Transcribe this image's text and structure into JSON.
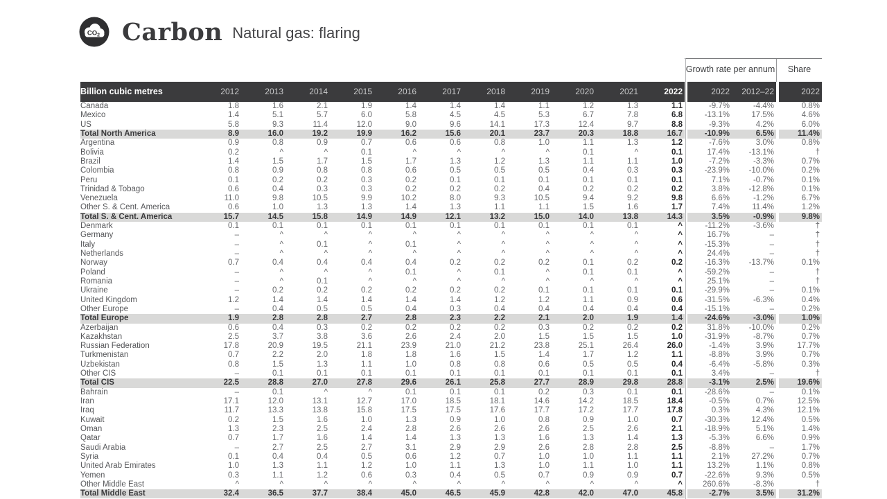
{
  "brand": {
    "icon_label": "CO2",
    "title": "Carbon",
    "subtitle": "Natural gas: flaring"
  },
  "colors": {
    "header_bg": "#3b3b3d",
    "total_row_bg": "#d9d9d8",
    "bold_text": "#28282a",
    "body_text": "#66676a"
  },
  "table": {
    "unit_label": "Billion cubic metres",
    "years": [
      "2012",
      "2013",
      "2014",
      "2015",
      "2016",
      "2017",
      "2018",
      "2019",
      "2020",
      "2021",
      "2022"
    ],
    "growth_section": {
      "title": "Growth rate per annum",
      "columns": [
        "2022",
        "2012–22"
      ]
    },
    "share_section": {
      "title": "Share",
      "column": "2022"
    },
    "rows": [
      {
        "label": "Canada",
        "total": false,
        "values": [
          "1.8",
          "1.6",
          "2.1",
          "1.9",
          "1.4",
          "1.4",
          "1.4",
          "1.1",
          "1.2",
          "1.3",
          "1.1"
        ],
        "growth": [
          "-9.7%",
          "-4.4%"
        ],
        "share": "0.8%"
      },
      {
        "label": "Mexico",
        "total": false,
        "values": [
          "1.4",
          "5.1",
          "5.7",
          "6.0",
          "5.8",
          "4.5",
          "4.5",
          "5.3",
          "6.7",
          "7.8",
          "6.8"
        ],
        "growth": [
          "-13.1%",
          "17.5%"
        ],
        "share": "4.6%"
      },
      {
        "label": "US",
        "total": false,
        "values": [
          "5.8",
          "9.3",
          "11.4",
          "12.0",
          "9.0",
          "9.6",
          "14.1",
          "17.3",
          "12.4",
          "9.7",
          "8.8"
        ],
        "growth": [
          "-9.3%",
          "4.2%"
        ],
        "share": "6.0%"
      },
      {
        "label": "Total North America",
        "total": true,
        "values": [
          "8.9",
          "16.0",
          "19.2",
          "19.9",
          "16.2",
          "15.6",
          "20.1",
          "23.7",
          "20.3",
          "18.8",
          "16.7"
        ],
        "growth": [
          "-10.9%",
          "6.5%"
        ],
        "share": "11.4%"
      },
      {
        "label": "Argentina",
        "total": false,
        "values": [
          "0.9",
          "0.8",
          "0.9",
          "0.7",
          "0.6",
          "0.6",
          "0.8",
          "1.0",
          "1.1",
          "1.3",
          "1.2"
        ],
        "growth": [
          "-7.6%",
          "3.0%"
        ],
        "share": "0.8%"
      },
      {
        "label": "Bolivia",
        "total": false,
        "values": [
          "0.2",
          "^",
          "^",
          "0.1",
          "^",
          "^",
          "^",
          "^",
          "0.1",
          "^",
          "0.1"
        ],
        "growth": [
          "17.4%",
          "-13.1%"
        ],
        "share": "†"
      },
      {
        "label": "Brazil",
        "total": false,
        "values": [
          "1.4",
          "1.5",
          "1.7",
          "1.5",
          "1.7",
          "1.3",
          "1.2",
          "1.3",
          "1.1",
          "1.1",
          "1.0"
        ],
        "growth": [
          "-7.2%",
          "-3.3%"
        ],
        "share": "0.7%"
      },
      {
        "label": "Colombia",
        "total": false,
        "values": [
          "0.8",
          "0.9",
          "0.8",
          "0.8",
          "0.6",
          "0.5",
          "0.5",
          "0.5",
          "0.4",
          "0.3",
          "0.3"
        ],
        "growth": [
          "-23.9%",
          "-10.0%"
        ],
        "share": "0.2%"
      },
      {
        "label": "Peru",
        "total": false,
        "values": [
          "0.1",
          "0.2",
          "0.2",
          "0.3",
          "0.2",
          "0.1",
          "0.1",
          "0.1",
          "0.1",
          "0.1",
          "0.1"
        ],
        "growth": [
          "7.1%",
          "-0.7%"
        ],
        "share": "0.1%"
      },
      {
        "label": "Trinidad & Tobago",
        "total": false,
        "values": [
          "0.6",
          "0.4",
          "0.3",
          "0.3",
          "0.2",
          "0.2",
          "0.2",
          "0.4",
          "0.2",
          "0.2",
          "0.2"
        ],
        "growth": [
          "3.8%",
          "-12.8%"
        ],
        "share": "0.1%"
      },
      {
        "label": "Venezuela",
        "total": false,
        "values": [
          "11.0",
          "9.8",
          "10.5",
          "9.9",
          "10.2",
          "8.0",
          "9.3",
          "10.5",
          "9.4",
          "9.2",
          "9.8"
        ],
        "growth": [
          "6.6%",
          "-1.2%"
        ],
        "share": "6.7%"
      },
      {
        "label": "Other S. & Cent. America",
        "total": false,
        "values": [
          "0.6",
          "1.0",
          "1.3",
          "1.3",
          "1.4",
          "1.3",
          "1.1",
          "1.1",
          "1.5",
          "1.6",
          "1.7"
        ],
        "growth": [
          "7.4%",
          "11.4%"
        ],
        "share": "1.2%"
      },
      {
        "label": "Total S. & Cent. America",
        "total": true,
        "values": [
          "15.7",
          "14.5",
          "15.8",
          "14.9",
          "14.9",
          "12.1",
          "13.2",
          "15.0",
          "14.0",
          "13.8",
          "14.3"
        ],
        "growth": [
          "3.5%",
          "-0.9%"
        ],
        "share": "9.8%"
      },
      {
        "label": "Denmark",
        "total": false,
        "values": [
          "0.1",
          "0.1",
          "0.1",
          "0.1",
          "0.1",
          "0.1",
          "0.1",
          "0.1",
          "0.1",
          "0.1",
          "^"
        ],
        "growth": [
          "-11.2%",
          "-3.6%"
        ],
        "share": "†"
      },
      {
        "label": "Germany",
        "total": false,
        "values": [
          "–",
          "^",
          "^",
          "^",
          "^",
          "^",
          "^",
          "^",
          "^",
          "^",
          "^"
        ],
        "growth": [
          "16.7%",
          "–"
        ],
        "share": "†"
      },
      {
        "label": "Italy",
        "total": false,
        "values": [
          "–",
          "^",
          "0.1",
          "^",
          "0.1",
          "^",
          "^",
          "^",
          "^",
          "^",
          "^"
        ],
        "growth": [
          "-15.3%",
          "–"
        ],
        "share": "†"
      },
      {
        "label": "Netherlands",
        "total": false,
        "values": [
          "–",
          "^",
          "^",
          "^",
          "^",
          "^",
          "^",
          "^",
          "^",
          "^",
          "^"
        ],
        "growth": [
          "24.4%",
          "–"
        ],
        "share": "†"
      },
      {
        "label": "Norway",
        "total": false,
        "values": [
          "0.7",
          "0.4",
          "0.4",
          "0.4",
          "0.4",
          "0.2",
          "0.2",
          "0.2",
          "0.1",
          "0.2",
          "0.2"
        ],
        "growth": [
          "-16.3%",
          "-13.7%"
        ],
        "share": "0.1%"
      },
      {
        "label": "Poland",
        "total": false,
        "values": [
          "–",
          "^",
          "^",
          "^",
          "0.1",
          "^",
          "0.1",
          "^",
          "0.1",
          "0.1",
          "^"
        ],
        "growth": [
          "-59.2%",
          "–"
        ],
        "share": "†"
      },
      {
        "label": "Romania",
        "total": false,
        "values": [
          "–",
          "^",
          "0.1",
          "^",
          "^",
          "^",
          "^",
          "^",
          "^",
          "^",
          "^"
        ],
        "growth": [
          "25.1%",
          "–"
        ],
        "share": "†"
      },
      {
        "label": "Ukraine",
        "total": false,
        "values": [
          "–",
          "0.2",
          "0.2",
          "0.2",
          "0.2",
          "0.2",
          "0.2",
          "0.1",
          "0.1",
          "0.1",
          "0.1"
        ],
        "growth": [
          "-29.9%",
          "–"
        ],
        "share": "0.1%"
      },
      {
        "label": "United Kingdom",
        "total": false,
        "values": [
          "1.2",
          "1.4",
          "1.4",
          "1.4",
          "1.4",
          "1.4",
          "1.2",
          "1.2",
          "1.1",
          "0.9",
          "0.6"
        ],
        "growth": [
          "-31.5%",
          "-6.3%"
        ],
        "share": "0.4%"
      },
      {
        "label": "Other Europe",
        "total": false,
        "values": [
          "–",
          "0.4",
          "0.5",
          "0.5",
          "0.4",
          "0.3",
          "0.4",
          "0.4",
          "0.4",
          "0.4",
          "0.4"
        ],
        "growth": [
          "-15.1%",
          "–"
        ],
        "share": "0.2%"
      },
      {
        "label": "Total Europe",
        "total": true,
        "values": [
          "1.9",
          "2.8",
          "2.8",
          "2.7",
          "2.8",
          "2.3",
          "2.2",
          "2.1",
          "2.0",
          "1.9",
          "1.4"
        ],
        "growth": [
          "-24.6%",
          "-3.0%"
        ],
        "share": "1.0%"
      },
      {
        "label": "Azerbaijan",
        "total": false,
        "values": [
          "0.6",
          "0.4",
          "0.3",
          "0.2",
          "0.2",
          "0.2",
          "0.2",
          "0.3",
          "0.2",
          "0.2",
          "0.2"
        ],
        "growth": [
          "31.8%",
          "-10.0%"
        ],
        "share": "0.2%"
      },
      {
        "label": "Kazakhstan",
        "total": false,
        "values": [
          "2.5",
          "3.7",
          "3.8",
          "3.6",
          "2.6",
          "2.4",
          "2.0",
          "1.5",
          "1.5",
          "1.5",
          "1.0"
        ],
        "growth": [
          "-31.9%",
          "-8.7%"
        ],
        "share": "0.7%"
      },
      {
        "label": "Russian Federation",
        "total": false,
        "values": [
          "17.8",
          "20.9",
          "19.5",
          "21.1",
          "23.9",
          "21.0",
          "21.2",
          "23.8",
          "25.1",
          "26.4",
          "26.0"
        ],
        "growth": [
          "-1.4%",
          "3.9%"
        ],
        "share": "17.7%"
      },
      {
        "label": "Turkmenistan",
        "total": false,
        "values": [
          "0.7",
          "2.2",
          "2.0",
          "1.8",
          "1.8",
          "1.6",
          "1.5",
          "1.4",
          "1.7",
          "1.2",
          "1.1"
        ],
        "growth": [
          "-8.8%",
          "3.9%"
        ],
        "share": "0.7%"
      },
      {
        "label": "Uzbekistan",
        "total": false,
        "values": [
          "0.8",
          "1.5",
          "1.3",
          "1.1",
          "1.0",
          "0.8",
          "0.8",
          "0.6",
          "0.5",
          "0.5",
          "0.4"
        ],
        "growth": [
          "-6.4%",
          "-5.8%"
        ],
        "share": "0.3%"
      },
      {
        "label": "Other CIS",
        "total": false,
        "values": [
          "–",
          "0.1",
          "0.1",
          "0.1",
          "0.1",
          "0.1",
          "0.1",
          "0.1",
          "0.1",
          "0.1",
          "0.1"
        ],
        "growth": [
          "3.4%",
          "–"
        ],
        "share": "†"
      },
      {
        "label": "Total CIS",
        "total": true,
        "values": [
          "22.5",
          "28.8",
          "27.0",
          "27.8",
          "29.6",
          "26.1",
          "25.8",
          "27.7",
          "28.9",
          "29.8",
          "28.8"
        ],
        "growth": [
          "-3.1%",
          "2.5%"
        ],
        "share": "19.6%"
      },
      {
        "label": "Bahrain",
        "total": false,
        "values": [
          "–",
          "0.1",
          "^",
          "^",
          "0.1",
          "0.1",
          "0.1",
          "0.2",
          "0.3",
          "0.1",
          "0.1"
        ],
        "growth": [
          "-28.6%",
          "–"
        ],
        "share": "0.1%"
      },
      {
        "label": "Iran",
        "total": false,
        "values": [
          "17.1",
          "12.0",
          "13.1",
          "12.7",
          "17.0",
          "18.5",
          "18.1",
          "14.6",
          "14.2",
          "18.5",
          "18.4"
        ],
        "growth": [
          "-0.5%",
          "0.7%"
        ],
        "share": "12.5%"
      },
      {
        "label": "Iraq",
        "total": false,
        "values": [
          "11.7",
          "13.3",
          "13.8",
          "15.8",
          "17.5",
          "17.5",
          "17.6",
          "17.7",
          "17.2",
          "17.7",
          "17.8"
        ],
        "growth": [
          "0.3%",
          "4.3%"
        ],
        "share": "12.1%"
      },
      {
        "label": "Kuwait",
        "total": false,
        "values": [
          "0.2",
          "1.5",
          "1.6",
          "1.0",
          "1.3",
          "0.9",
          "1.0",
          "0.8",
          "0.9",
          "1.0",
          "0.7"
        ],
        "growth": [
          "-30.3%",
          "12.4%"
        ],
        "share": "0.5%"
      },
      {
        "label": "Oman",
        "total": false,
        "values": [
          "1.3",
          "2.3",
          "2.5",
          "2.4",
          "2.8",
          "2.6",
          "2.6",
          "2.6",
          "2.5",
          "2.6",
          "2.1"
        ],
        "growth": [
          "-18.9%",
          "5.1%"
        ],
        "share": "1.4%"
      },
      {
        "label": "Qatar",
        "total": false,
        "values": [
          "0.7",
          "1.7",
          "1.6",
          "1.4",
          "1.4",
          "1.3",
          "1.3",
          "1.6",
          "1.3",
          "1.4",
          "1.3"
        ],
        "growth": [
          "-5.3%",
          "6.6%"
        ],
        "share": "0.9%"
      },
      {
        "label": "Saudi Arabia",
        "total": false,
        "values": [
          "–",
          "2.7",
          "2.5",
          "2.7",
          "3.1",
          "2.9",
          "2.9",
          "2.6",
          "2.8",
          "2.8",
          "2.5"
        ],
        "growth": [
          "-8.8%",
          "–"
        ],
        "share": "1.7%"
      },
      {
        "label": "Syria",
        "total": false,
        "values": [
          "0.1",
          "0.4",
          "0.4",
          "0.5",
          "0.6",
          "1.2",
          "0.7",
          "1.0",
          "1.0",
          "1.1",
          "1.1"
        ],
        "growth": [
          "2.1%",
          "27.2%"
        ],
        "share": "0.7%"
      },
      {
        "label": "United Arab Emirates",
        "total": false,
        "values": [
          "1.0",
          "1.3",
          "1.1",
          "1.2",
          "1.0",
          "1.1",
          "1.3",
          "1.0",
          "1.1",
          "1.0",
          "1.1"
        ],
        "growth": [
          "13.2%",
          "1.1%"
        ],
        "share": "0.8%"
      },
      {
        "label": "Yemen",
        "total": false,
        "values": [
          "0.3",
          "1.1",
          "1.2",
          "0.6",
          "0.3",
          "0.4",
          "0.5",
          "0.7",
          "0.9",
          "0.9",
          "0.7"
        ],
        "growth": [
          "-22.6%",
          "9.3%"
        ],
        "share": "0.5%"
      },
      {
        "label": "Other Middle East",
        "total": false,
        "values": [
          "^",
          "^",
          "^",
          "^",
          "^",
          "^",
          "^",
          "^",
          "^",
          "^",
          "^"
        ],
        "growth": [
          "260.6%",
          "-8.3%"
        ],
        "share": "†"
      },
      {
        "label": "Total Middle East",
        "total": true,
        "values": [
          "32.4",
          "36.5",
          "37.7",
          "38.4",
          "45.0",
          "46.5",
          "45.9",
          "42.8",
          "42.0",
          "47.0",
          "45.8"
        ],
        "growth": [
          "-2.7%",
          "3.5%"
        ],
        "share": "31.2%"
      }
    ]
  }
}
